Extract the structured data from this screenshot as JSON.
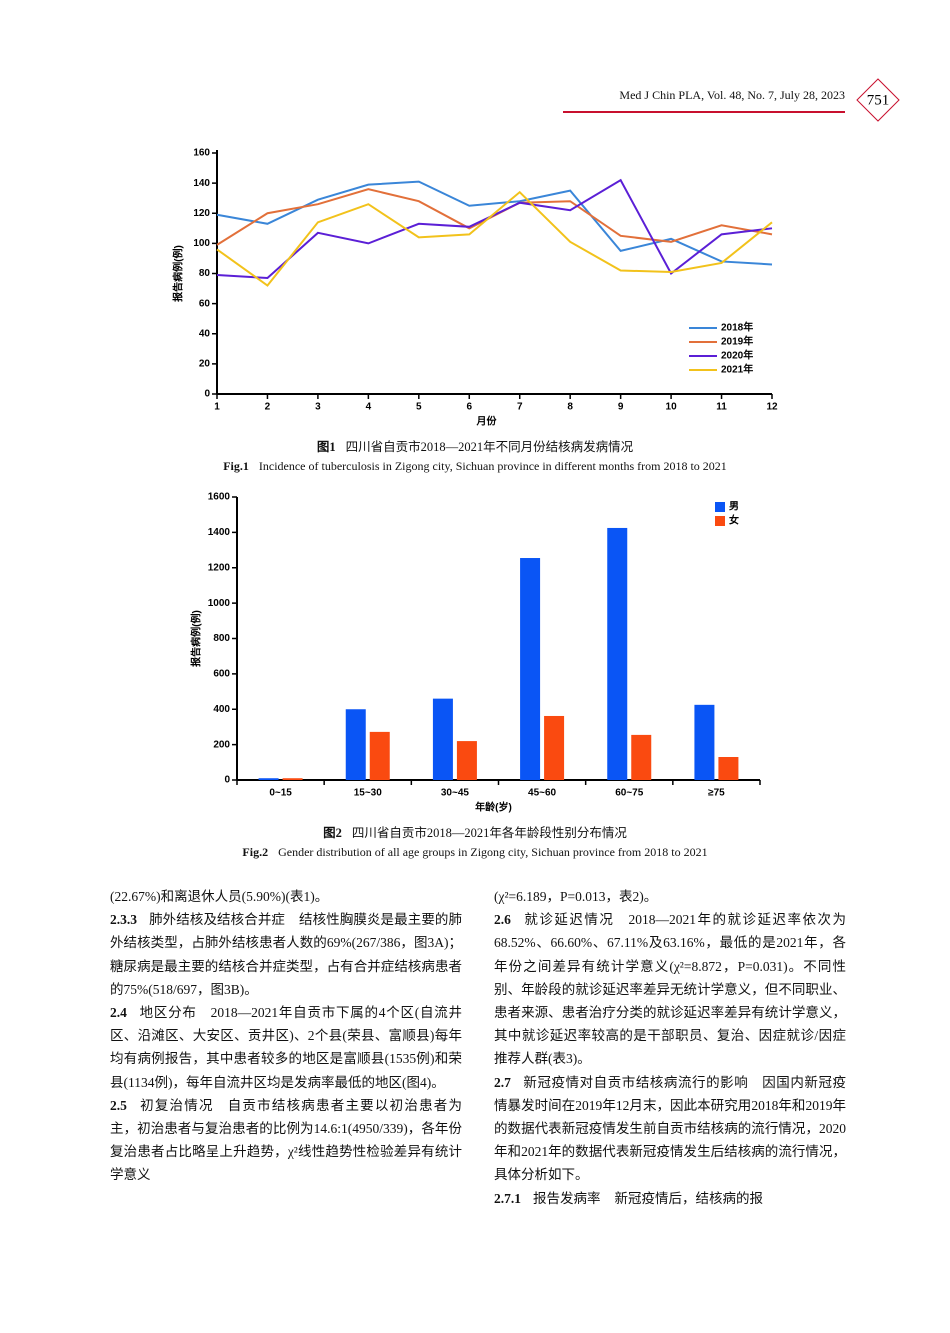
{
  "header": {
    "journal": "Med J Chin PLA, Vol. 48, No. 7, July 28, 2023",
    "page": "751"
  },
  "chart_data": [
    {
      "type": "line",
      "caption_label_cn": "图1",
      "caption_cn": "四川省自贡市2018—2021年不同月份结核病发病情况",
      "caption_label_en": "Fig.1",
      "caption_en": "Incidence of tuberculosis in Zigong city, Sichuan province in different months from 2018 to 2021",
      "x_label": "月份",
      "y_label": "报告病例(例)",
      "x": [
        1,
        2,
        3,
        4,
        5,
        6,
        7,
        8,
        9,
        10,
        11,
        12
      ],
      "xlim": [
        1,
        12
      ],
      "xticks": [
        1,
        2,
        3,
        4,
        5,
        6,
        7,
        8,
        9,
        10,
        11,
        12
      ],
      "ylim": [
        0,
        160
      ],
      "yticks": [
        0,
        20,
        40,
        60,
        80,
        100,
        120,
        140,
        160
      ],
      "legend": "lower-right",
      "series": [
        {
          "name": "2018年",
          "color": "#3a86d8",
          "values": [
            119,
            113,
            129,
            139,
            141,
            125,
            128,
            135,
            95,
            103,
            88,
            86
          ]
        },
        {
          "name": "2019年",
          "color": "#e2703a",
          "values": [
            99,
            120,
            126,
            136,
            128,
            110,
            127,
            128,
            105,
            101,
            112,
            106
          ]
        },
        {
          "name": "2020年",
          "color": "#5b1fd6",
          "values": [
            79,
            77,
            107,
            100,
            113,
            111,
            127,
            122,
            142,
            80,
            106,
            110
          ]
        },
        {
          "name": "2021年",
          "color": "#f2c21b",
          "values": [
            96,
            72,
            114,
            126,
            104,
            106,
            134,
            101,
            82,
            81,
            87,
            114
          ]
        }
      ]
    },
    {
      "type": "bar",
      "caption_label_cn": "图2",
      "caption_cn": "四川省自贡市2018—2021年各年龄段性别分布情况",
      "caption_label_en": "Fig.2",
      "caption_en": "Gender distribution of all age groups in Zigong city, Sichuan province from 2018 to 2021",
      "x_label": "年龄(岁)",
      "y_label": "报告病例(例)",
      "categories": [
        "0~15",
        "15~30",
        "30~45",
        "45~60",
        "60~75",
        "≥75"
      ],
      "ylim": [
        0,
        1600
      ],
      "yticks": [
        0,
        200,
        400,
        600,
        800,
        1000,
        1200,
        1400,
        1600
      ],
      "legend": "upper-right",
      "series": [
        {
          "name": "男",
          "color": "#0a55f5",
          "values": [
            10,
            400,
            460,
            1255,
            1425,
            425
          ]
        },
        {
          "name": "女",
          "color": "#fa4a10",
          "values": [
            10,
            272,
            220,
            362,
            255,
            130
          ]
        }
      ]
    }
  ],
  "body": {
    "left": [
      {
        "text": "(22.67%)和离退休人员(5.90%)(表1)。"
      },
      {
        "num": "2.3.3",
        "heading": "肺外结核及结核合并症",
        "text": "结核性胸膜炎是最主要的肺外结核类型，占肺外结核患者人数的69%(267/386，图3A)；糖尿病是最主要的结核合并症类型，占有合并症结核病患者的75%(518/697，图3B)。"
      },
      {
        "num": "2.4",
        "heading": "地区分布",
        "text": "2018—2021年自贡市下属的4个区(自流井区、沿滩区、大安区、贡井区)、2个县(荣县、富顺县)每年均有病例报告，其中患者较多的地区是富顺县(1535例)和荣县(1134例)，每年自流井区均是发病率最低的地区(图4)。"
      },
      {
        "num": "2.5",
        "heading": "初复治情况",
        "text": "自贡市结核病患者主要以初治患者为主，初治患者与复治患者的比例为14.6:1(4950/339)，各年份复治患者占比略呈上升趋势，χ²线性趋势性检验差异有统计学意义"
      }
    ],
    "right": [
      {
        "text": "(χ²=6.189，P=0.013，表2)。"
      },
      {
        "num": "2.6",
        "heading": "就诊延迟情况",
        "text": "2018—2021年的就诊延迟率依次为68.52%、66.60%、67.11%及63.16%，最低的是2021年，各年份之间差异有统计学意义(χ²=8.872，P=0.031)。不同性别、年龄段的就诊延迟率差异无统计学意义，但不同职业、患者来源、患者治疗分类的就诊延迟率差异有统计学意义，其中就诊延迟率较高的是干部职员、复治、因症就诊/因症推荐人群(表3)。"
      },
      {
        "num": "2.7",
        "heading": "新冠疫情对自贡市结核病流行的影响",
        "text": "因国内新冠疫情暴发时间在2019年12月末，因此本研究用2018年和2019年的数据代表新冠疫情发生前自贡市结核病的流行情况，2020年和2021年的数据代表新冠疫情发生后结核病的流行情况，具体分析如下。"
      },
      {
        "num": "2.7.1",
        "heading": "报告发病率",
        "text": "新冠疫情后，结核病的报"
      }
    ]
  }
}
